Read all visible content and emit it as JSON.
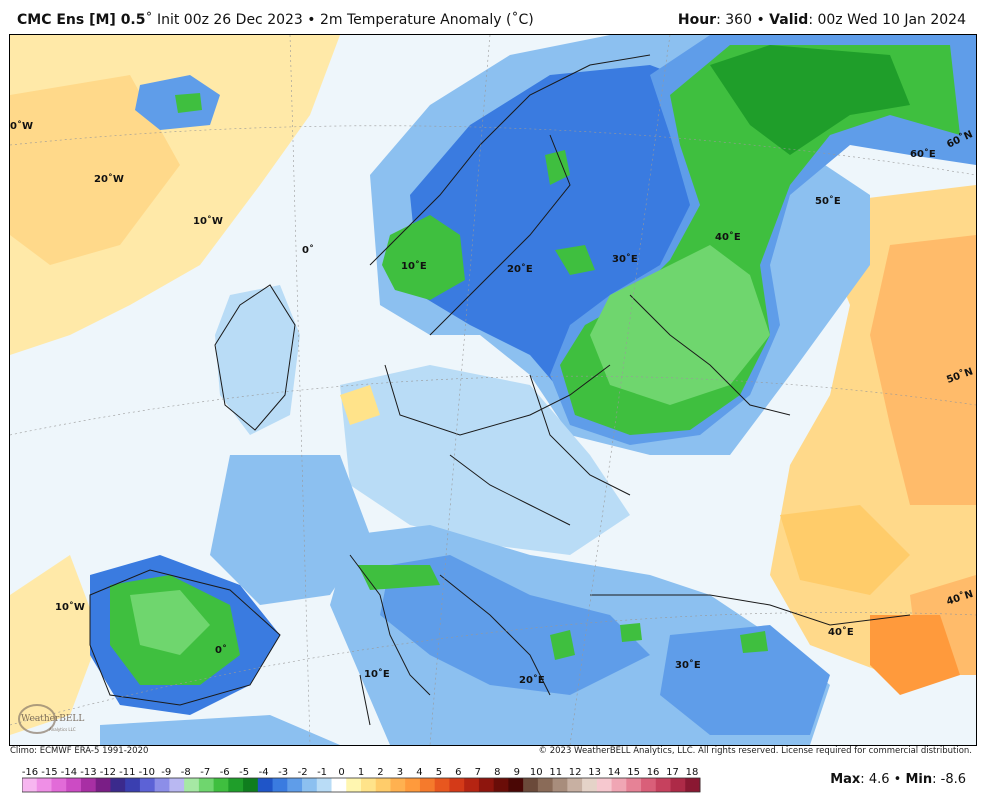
{
  "header": {
    "model": "CMC Ens [M] 0.5",
    "degree_mark": "˚",
    "init": "Init 00z 26 Dec 2023",
    "bullet": "•",
    "field": "2m Temperature Anomaly (˚C)",
    "hour_label": "Hour",
    "hour_value": "360",
    "valid_label": "Valid",
    "valid_value": "00z Wed 10 Jan 2024"
  },
  "map": {
    "lon_labels": [
      "0˚W",
      "20˚W",
      "10˚W",
      "0˚",
      "10˚E",
      "20˚E",
      "30˚E",
      "40˚E",
      "50˚E",
      "60˚E",
      "10˚W",
      "0˚",
      "10˚E",
      "20˚E",
      "30˚E",
      "40˚E"
    ],
    "lat_labels": [
      "60˚N",
      "50˚N",
      "40˚N"
    ]
  },
  "footer": {
    "climo": "Climo: ECMWF ERA-5 1991-2020",
    "copyright": "© 2023 WeatherBELL Analytics, LLC. All rights reserved. License required for commercial distribution."
  },
  "logo": {
    "text": "WeatherBELL",
    "subtext": "Analytics LLC"
  },
  "colorbar": {
    "ticks": [
      "-16",
      "-15",
      "-14",
      "-13",
      "-12",
      "-11",
      "-10",
      "-9",
      "-8",
      "-7",
      "-6",
      "-5",
      "-4",
      "-3",
      "-2",
      "-1",
      "0",
      "1",
      "2",
      "3",
      "4",
      "5",
      "6",
      "7",
      "8",
      "9",
      "10",
      "11",
      "12",
      "13",
      "14",
      "15",
      "16",
      "17",
      "18"
    ],
    "colors": [
      "#f7b6f0",
      "#ef8fe6",
      "#e26bd8",
      "#cc4bc4",
      "#a82fa4",
      "#7a1e86",
      "#3b2a8c",
      "#3a3fb0",
      "#5c62d6",
      "#8c8ee8",
      "#b9b8f2",
      "#a6e8a4",
      "#6fd66e",
      "#3fbf3f",
      "#1f9e2a",
      "#0f7d1e",
      "#1f55c8",
      "#3a7be0",
      "#5f9de9",
      "#8cc0f0",
      "#b9dcf6",
      "#ffffff",
      "#fff6b0",
      "#ffe38a",
      "#ffcc6a",
      "#ffb150",
      "#ff9a3c",
      "#f57a2c",
      "#e8571f",
      "#d43a18",
      "#b52412",
      "#8e150d",
      "#6a0d08",
      "#4a0705",
      "#6b4a3a",
      "#8a6b58",
      "#a88d7c",
      "#c8b0a2",
      "#e5d3c8",
      "#f6c8cf",
      "#f0a6b4",
      "#e68296",
      "#d95f79",
      "#c6415e",
      "#ad2a47",
      "#8a1832"
    ],
    "max_label": "Max",
    "max_value": "4.6",
    "min_label": "Min",
    "min_value": "-8.6"
  }
}
